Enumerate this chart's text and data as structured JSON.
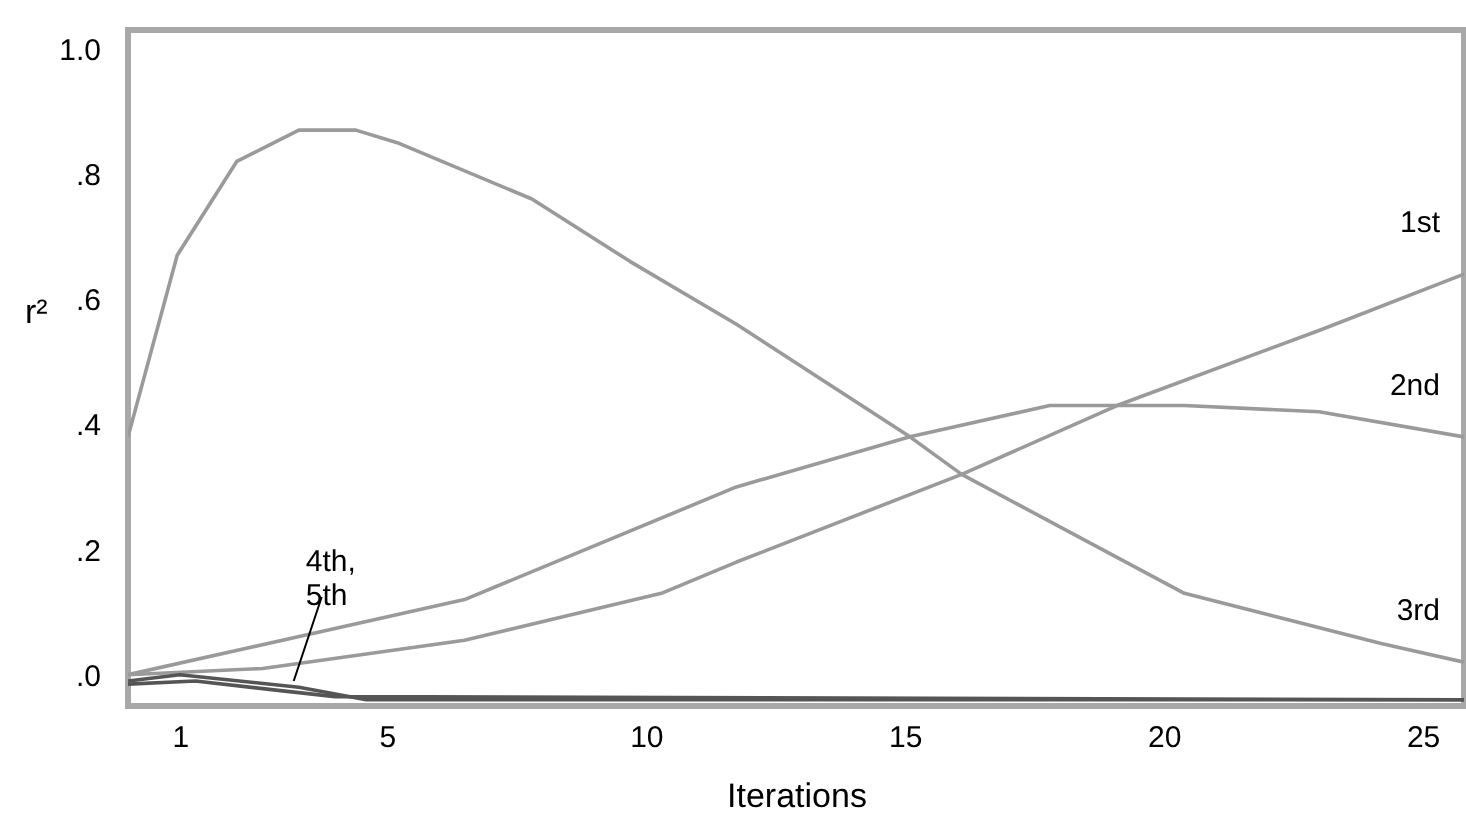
{
  "chart_data": {
    "type": "line",
    "xlabel": "Iterations",
    "ylabel": "r²",
    "xlim": [
      0,
      25.8
    ],
    "ylim": [
      -0.05,
      1.03
    ],
    "xticks": [
      1,
      5,
      10,
      15,
      20,
      25
    ],
    "yticks": [
      {
        "value": 0,
        "label": ".0"
      },
      {
        "value": 0.2,
        "label": ".2"
      },
      {
        "value": 0.4,
        "label": ".4"
      },
      {
        "value": 0.6,
        "label": ".6"
      },
      {
        "value": 0.8,
        "label": ".8"
      },
      {
        "value": 1,
        "label": "1.0"
      }
    ],
    "grid": false,
    "marker": "none",
    "line_style": "solid",
    "series": [
      {
        "name": "1st",
        "color": "#9a9a9a",
        "x": [
          0,
          2.6,
          6.5,
          10.3,
          11.75,
          16.1,
          19.1,
          23,
          25.8
        ],
        "values": [
          0,
          0.01,
          0.055,
          0.13,
          0.18,
          0.32,
          0.43,
          0.55,
          0.64
        ]
      },
      {
        "name": "2nd",
        "color": "#9a9a9a",
        "x": [
          0,
          6.5,
          11.75,
          15.1,
          17.8,
          20.4,
          23,
          25.8
        ],
        "values": [
          0,
          0.12,
          0.3,
          0.38,
          0.43,
          0.43,
          0.42,
          0.38
        ]
      },
      {
        "name": "3rd",
        "color": "#9a9a9a",
        "x": [
          0,
          0.95,
          2.1,
          3.3,
          4.4,
          5.2,
          7.8,
          9.7,
          11.75,
          15.1,
          16.1,
          20.4,
          24.2,
          25.8
        ],
        "values": [
          0.38,
          0.67,
          0.82,
          0.87,
          0.87,
          0.85,
          0.76,
          0.66,
          0.56,
          0.38,
          0.32,
          0.13,
          0.05,
          0.02
        ]
      },
      {
        "color": "#555555",
        "x": [
          0,
          1,
          3.3,
          4.6,
          25.8
        ],
        "values": [
          -0.01,
          0,
          -0.02,
          -0.04,
          -0.04
        ]
      },
      {
        "color": "#555555",
        "x": [
          0,
          1.3,
          2.9,
          4,
          25.8
        ],
        "values": [
          -0.015,
          -0.01,
          -0.025,
          -0.035,
          -0.04
        ]
      }
    ],
    "annotations": [
      {
        "text": "4th,\n5th",
        "x": 3.2,
        "y": -0.01
      }
    ]
  }
}
